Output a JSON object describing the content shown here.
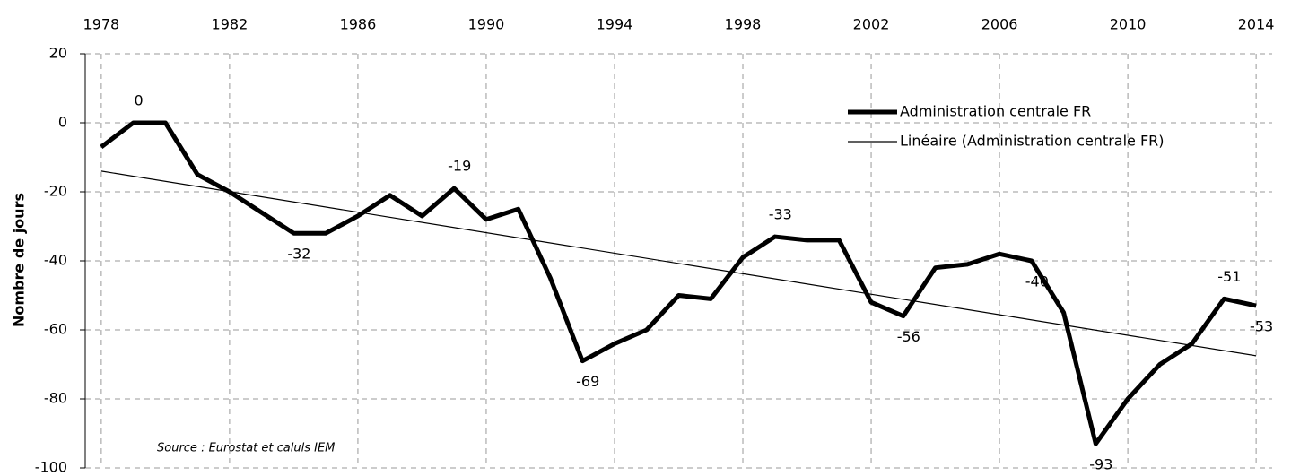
{
  "chart_data": {
    "type": "line",
    "y_label": "Nombre de jours",
    "annotation": "Source : Eurostat et caluls IEM",
    "x": [
      1978,
      1979,
      1980,
      1981,
      1982,
      1983,
      1984,
      1985,
      1986,
      1987,
      1988,
      1989,
      1990,
      1991,
      1992,
      1993,
      1994,
      1995,
      1996,
      1997,
      1998,
      1999,
      2000,
      2001,
      2002,
      2003,
      2004,
      2005,
      2006,
      2007,
      2008,
      2009,
      2010,
      2011,
      2012,
      2013,
      2014
    ],
    "series": [
      {
        "name": "Administration centrale FR",
        "color": "#000000",
        "values": [
          -7,
          0,
          0,
          -15,
          -20,
          -26,
          -32,
          -32,
          -27,
          -21,
          -27,
          -19,
          -28,
          -25,
          -45,
          -69,
          -64,
          -60,
          -50,
          -51,
          -39,
          -33,
          -34,
          -34,
          -52,
          -56,
          -42,
          -41,
          -38,
          -40,
          -55,
          -93,
          -80,
          -70,
          -64,
          -51,
          -53
        ],
        "value_labels": [
          null,
          "0",
          null,
          null,
          null,
          null,
          "-32",
          null,
          null,
          null,
          null,
          "-19",
          null,
          null,
          null,
          "-69",
          null,
          null,
          null,
          null,
          null,
          "-33",
          null,
          null,
          null,
          "-56",
          null,
          null,
          null,
          "-40",
          null,
          "-93",
          null,
          null,
          null,
          "-51",
          "-53"
        ]
      },
      {
        "name": "Linéaire (Administration centrale FR)",
        "color": "#000000",
        "trend": true,
        "x": [
          1978,
          2014
        ],
        "values": [
          -14,
          -67.5
        ]
      }
    ],
    "xlim": [
      1977.5,
      2014.5
    ],
    "xticks": [
      1978,
      1982,
      1986,
      1990,
      1994,
      1998,
      2002,
      2006,
      2010,
      2014
    ],
    "ylim": [
      -100,
      20
    ],
    "yticks": [
      -100,
      -80,
      -60,
      -40,
      -20,
      0,
      20
    ],
    "grid": true,
    "legend": "top-right"
  }
}
